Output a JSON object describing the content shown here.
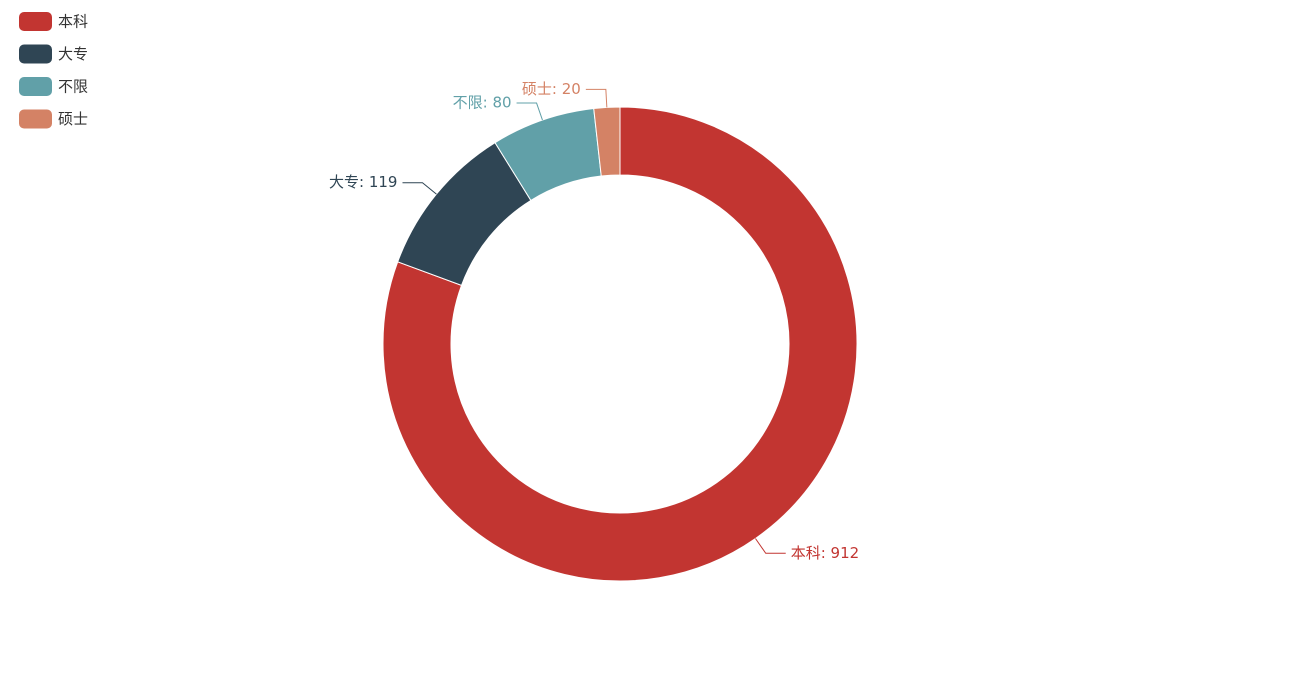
{
  "chart_data": {
    "type": "pie",
    "categories": [
      "本科",
      "大专",
      "不限",
      "硕士"
    ],
    "values": [
      912,
      119,
      80,
      20
    ],
    "value_labels": [
      "本科: 912",
      "大专: 119",
      "不限: 80",
      "硕士: 20"
    ],
    "colors": [
      "#c23531",
      "#2f4554",
      "#61a0a8",
      "#d48265"
    ],
    "legend": "top-left"
  }
}
